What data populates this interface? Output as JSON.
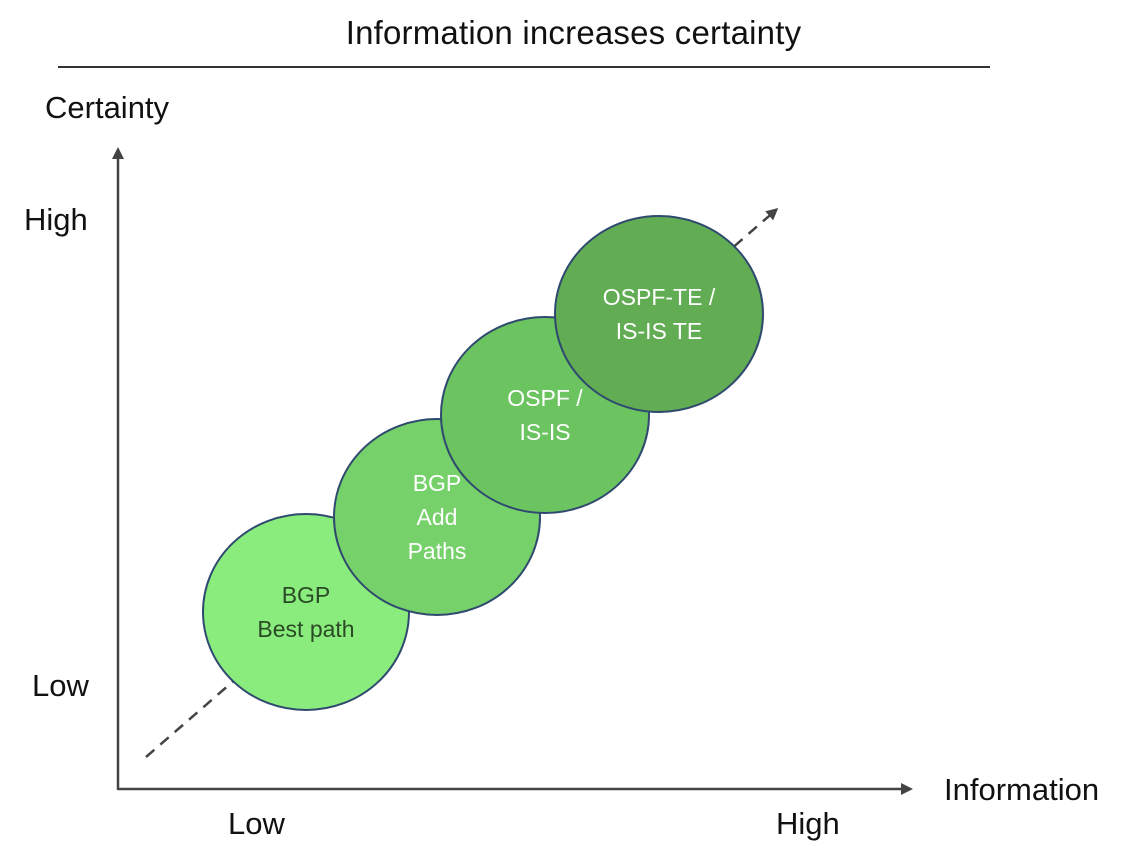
{
  "title": "Information increases certainty",
  "y_axis": {
    "label": "Certainty",
    "high": "High",
    "low": "Low"
  },
  "x_axis": {
    "label": "Information",
    "low": "Low",
    "high": "High"
  },
  "colors": {
    "bubble_1": "#8aec7c",
    "bubble_2": "#76d16a",
    "bubble_3": "#6bc460",
    "bubble_4": "#62ad54",
    "bubble_outline": "#2f4a6e",
    "axis": "#444444"
  },
  "bubbles": [
    {
      "lines": [
        "BGP",
        "Best path"
      ],
      "text_color": "#2a4a25"
    },
    {
      "lines": [
        "BGP",
        "Add",
        "Paths"
      ],
      "text_color": "#ffffff"
    },
    {
      "lines": [
        "OSPF /",
        "IS-IS"
      ],
      "text_color": "#ffffff"
    },
    {
      "lines": [
        "OSPF-TE /",
        "IS-IS TE"
      ],
      "text_color": "#ffffff"
    }
  ]
}
